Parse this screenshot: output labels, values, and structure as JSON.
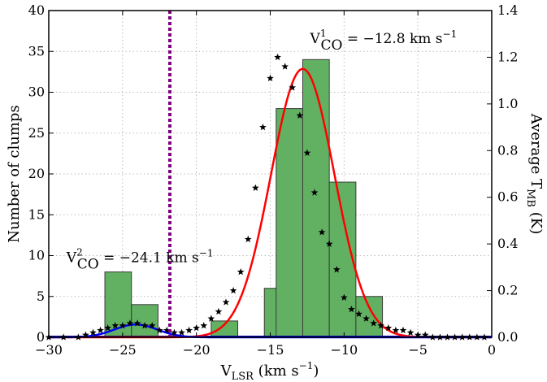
{
  "chart_data": {
    "type": "bar",
    "xlabel": {
      "base": "V",
      "sub": "LSR",
      "rest": " (km s",
      "sup": "−1",
      "close": ")"
    },
    "ylabel_left": "Number of clumps",
    "ylabel_right": {
      "base": "Average T",
      "sub": "MB",
      "rest": " (K)"
    },
    "xlim": [
      -30,
      0
    ],
    "ylim_left": [
      0,
      40
    ],
    "ylim_right": [
      0,
      1.4
    ],
    "x_ticks": [
      -30,
      -25,
      -20,
      -15,
      -10,
      -5,
      0
    ],
    "x_tick_labels": [
      "−30",
      "−25",
      "−20",
      "−15",
      "−10",
      "−5",
      "0"
    ],
    "y_left_ticks": [
      0,
      5,
      10,
      15,
      20,
      25,
      30,
      35,
      40
    ],
    "y_left_tick_labels": [
      "0",
      "5",
      "10",
      "15",
      "20",
      "25",
      "30",
      "35",
      "40"
    ],
    "y_right_ticks": [
      0,
      0.2,
      0.4,
      0.6,
      0.8,
      1.0,
      1.2,
      1.4
    ],
    "y_right_tick_labels": [
      "0.0",
      "0.2",
      "0.4",
      "0.6",
      "0.8",
      "1.0",
      "1.2",
      "1.4"
    ],
    "grid": true,
    "histogram": {
      "bin_width": 1.8,
      "bins": [
        {
          "start": -26.2,
          "count": 8
        },
        {
          "start": -24.4,
          "count": 4
        },
        {
          "start": -22.6,
          "count": 0
        },
        {
          "start": -20.8,
          "count": 0
        },
        {
          "start": -19.0,
          "count": 2
        },
        {
          "start": -17.2,
          "count": 0
        },
        {
          "start": -15.4,
          "count": 6
        },
        {
          "start": -14.6,
          "count": 28
        },
        {
          "start": -12.8,
          "count": 34
        },
        {
          "start": -11.0,
          "count": 19
        },
        {
          "start": -9.2,
          "count": 5
        }
      ]
    },
    "average_tmb_points": {
      "x": [
        -30.0,
        -29.0,
        -28.0,
        -27.5,
        -27.0,
        -26.5,
        -26.0,
        -25.5,
        -25.0,
        -24.5,
        -24.0,
        -23.5,
        -23.0,
        -22.5,
        -22.0,
        -21.5,
        -21.0,
        -20.5,
        -20.0,
        -19.5,
        -19.0,
        -18.5,
        -18.0,
        -17.5,
        -17.0,
        -16.5,
        -16.0,
        -15.5,
        -15.0,
        -14.5,
        -14.0,
        -13.5,
        -13.0,
        -12.5,
        -12.0,
        -11.5,
        -11.0,
        -10.5,
        -10.0,
        -9.5,
        -9.0,
        -8.5,
        -8.0,
        -7.5,
        -7.0,
        -6.5,
        -6.0,
        -5.5,
        -5.0,
        -4.5,
        -4.0,
        -3.5,
        -3.0,
        -2.5,
        -2.0,
        -1.5,
        -1.0,
        -0.5
      ],
      "y": [
        0.0,
        0.0,
        0.0,
        0.01,
        0.02,
        0.03,
        0.04,
        0.05,
        0.05,
        0.06,
        0.06,
        0.05,
        0.05,
        0.03,
        0.03,
        0.02,
        0.02,
        0.03,
        0.04,
        0.05,
        0.08,
        0.11,
        0.15,
        0.2,
        0.28,
        0.42,
        0.64,
        0.9,
        1.11,
        1.2,
        1.16,
        1.07,
        0.95,
        0.79,
        0.62,
        0.45,
        0.4,
        0.29,
        0.17,
        0.12,
        0.1,
        0.08,
        0.06,
        0.05,
        0.04,
        0.03,
        0.03,
        0.02,
        0.01,
        0.01,
        0.0,
        0.0,
        0.0,
        0.0,
        0.0,
        0.0,
        0.0,
        0.0
      ]
    },
    "gaussian_fits": [
      {
        "color": "#ff0000",
        "mean": -12.8,
        "sigma": 2.15,
        "amplitude": 1.15
      },
      {
        "color": "#0000ff",
        "mean": -24.1,
        "sigma": 1.45,
        "amplitude": 0.055
      }
    ],
    "vertical_line": {
      "x": -21.8,
      "color": "#800080"
    },
    "annotations": [
      {
        "base": "V",
        "sup": "1",
        "sub": "CO",
        "text": " = −12.8 km s",
        "tail": "−1",
        "anchor_x": -12.3,
        "anchor_y": 36.0
      },
      {
        "base": "V",
        "sup": "2",
        "sub": "CO",
        "text": " = −24.1 km s",
        "tail": "−1",
        "anchor_x": -28.8,
        "anchor_y": 9.2
      }
    ],
    "colors": {
      "bars": "#62b162",
      "bar_edge": "#3a3a3a",
      "markers": "#000000",
      "baseline": "#000080"
    }
  }
}
